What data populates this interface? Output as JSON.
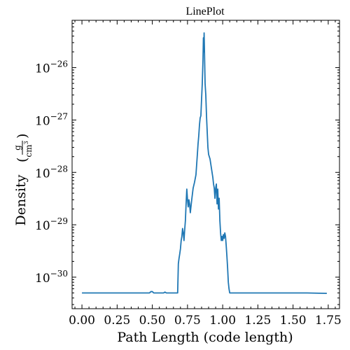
{
  "chart_data": {
    "type": "line",
    "title": "LinePlot",
    "xlabel": "Path Length  (code length)",
    "ylabel": {
      "text": "Density",
      "unit_numerator": "g",
      "unit_denominator": "cm",
      "unit_denominator_power": "3"
    },
    "xlim": [
      -0.07,
      1.83
    ],
    "ylim": [
      2.5e-31,
      8e-26
    ],
    "yscale": "log",
    "grid": false,
    "x_ticks": [
      {
        "value": 0.0,
        "label": "0.00"
      },
      {
        "value": 0.25,
        "label": "0.25"
      },
      {
        "value": 0.5,
        "label": "0.50"
      },
      {
        "value": 0.75,
        "label": "0.75"
      },
      {
        "value": 1.0,
        "label": "1.00"
      },
      {
        "value": 1.25,
        "label": "1.25"
      },
      {
        "value": 1.5,
        "label": "1.50"
      },
      {
        "value": 1.75,
        "label": "1.75"
      }
    ],
    "y_ticks": [
      {
        "value": 1e-30,
        "base": "10",
        "exp": "−30"
      },
      {
        "value": 1e-29,
        "base": "10",
        "exp": "−29"
      },
      {
        "value": 1e-28,
        "base": "10",
        "exp": "−28"
      },
      {
        "value": 1e-27,
        "base": "10",
        "exp": "−27"
      },
      {
        "value": 1e-26,
        "base": "10",
        "exp": "−26"
      }
    ],
    "series": [
      {
        "color": "#1f77b4",
        "x": [
          0.0,
          0.2,
          0.4,
          0.48,
          0.49,
          0.5,
          0.51,
          0.55,
          0.58,
          0.59,
          0.6,
          0.61,
          0.68,
          0.685,
          0.69,
          0.695,
          0.7,
          0.705,
          0.71,
          0.715,
          0.72,
          0.725,
          0.73,
          0.735,
          0.74,
          0.745,
          0.75,
          0.755,
          0.76,
          0.765,
          0.77,
          0.78,
          0.79,
          0.8,
          0.81,
          0.815,
          0.82,
          0.825,
          0.83,
          0.835,
          0.84,
          0.845,
          0.85,
          0.855,
          0.86,
          0.863,
          0.866,
          0.868,
          0.87,
          0.872,
          0.875,
          0.88,
          0.885,
          0.89,
          0.895,
          0.9,
          0.91,
          0.92,
          0.93,
          0.935,
          0.94,
          0.945,
          0.95,
          0.955,
          0.96,
          0.965,
          0.97,
          0.975,
          0.98,
          0.985,
          0.99,
          0.995,
          1.0,
          1.005,
          1.01,
          1.015,
          1.02,
          1.025,
          1.03,
          1.035,
          1.04,
          1.045,
          1.05,
          1.06,
          1.2,
          1.4,
          1.6,
          1.74
        ],
        "y": [
          5e-31,
          5e-31,
          5e-31,
          5e-31,
          5.3e-31,
          5.3e-31,
          5e-31,
          5e-31,
          5e-31,
          5.2e-31,
          5e-31,
          5e-31,
          5e-31,
          1.8e-30,
          2.3e-30,
          2.8e-30,
          3.5e-30,
          5e-30,
          6e-30,
          8.5e-30,
          7e-30,
          5e-30,
          8e-30,
          1.2e-29,
          2.5e-29,
          4.8e-29,
          3e-29,
          2.2e-29,
          3e-29,
          2.5e-29,
          1.7e-29,
          3e-29,
          5e-29,
          6.5e-29,
          9e-29,
          1.4e-28,
          2.2e-28,
          3.5e-28,
          5e-28,
          8e-28,
          1.1e-27,
          1.2e-27,
          2.5e-27,
          5e-27,
          1.4e-26,
          3.7e-26,
          2e-26,
          4.6e-26,
          2.5e-26,
          1.3e-26,
          5e-27,
          3e-27,
          1.2e-27,
          6e-28,
          3e-28,
          2.2e-28,
          1.8e-28,
          1.2e-28,
          8e-29,
          6e-29,
          5e-29,
          3.2e-29,
          5e-29,
          6e-29,
          2.5e-29,
          4.8e-29,
          2e-29,
          3.2e-29,
          1.2e-29,
          7e-30,
          5e-30,
          6e-30,
          5e-30,
          6.5e-30,
          5.5e-30,
          7e-30,
          6e-30,
          4e-30,
          2.5e-30,
          1.5e-30,
          8e-31,
          6e-31,
          5e-31,
          5e-31,
          5e-31,
          5e-31,
          5e-31,
          4.9e-31
        ]
      }
    ]
  }
}
